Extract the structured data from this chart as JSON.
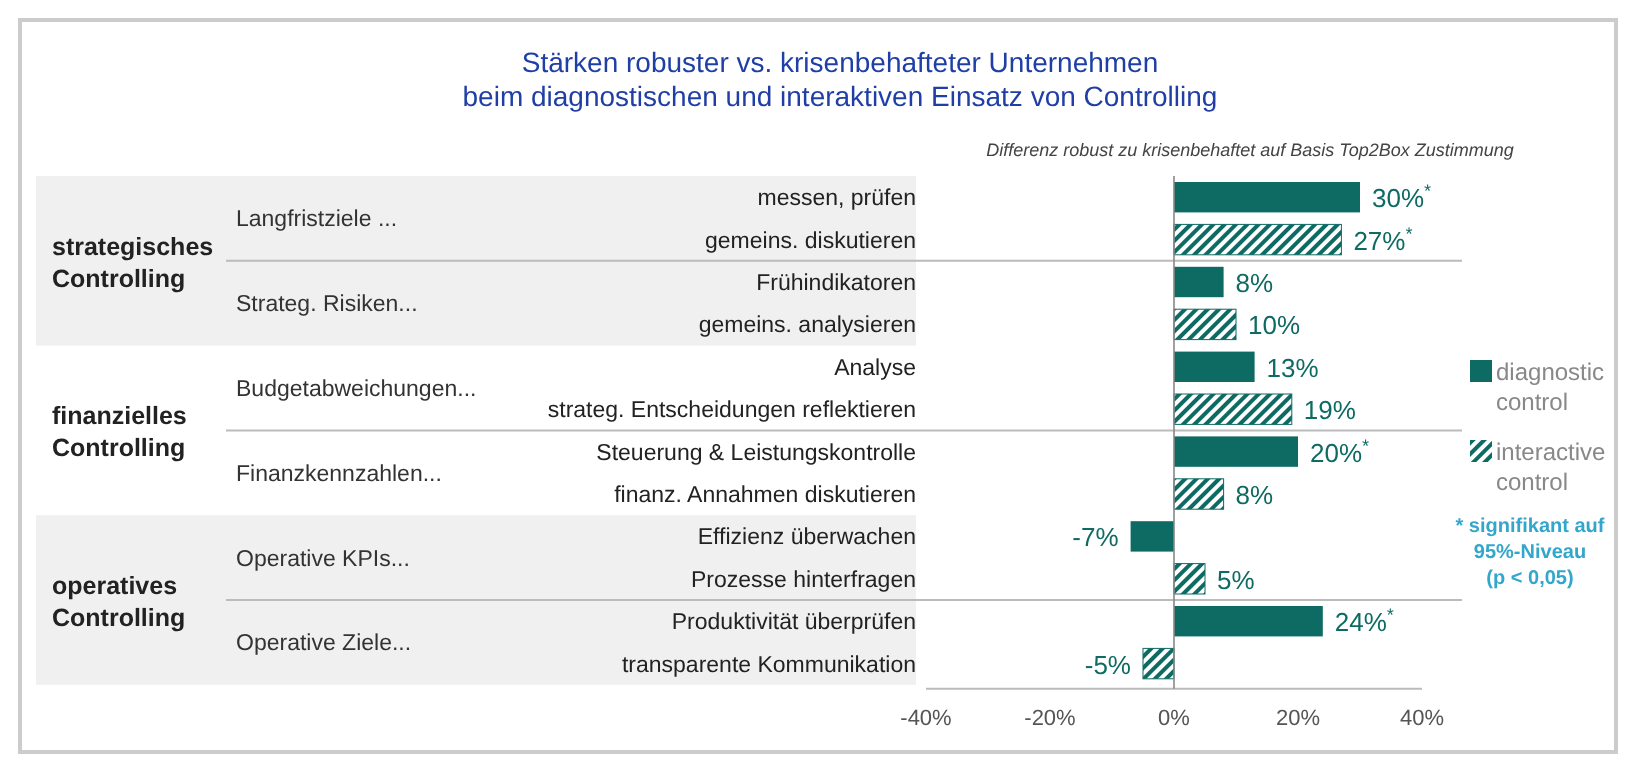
{
  "chart_data": {
    "type": "bar",
    "orientation": "horizontal",
    "title": "Stärken robuster vs. krisenbehafteter Unternehmen\nbeim diagnostischen und interaktiven Einsatz von Controlling",
    "subtitle": "Differenz robust zu krisenbehaftet auf Basis Top2Box Zustimmung",
    "categories": [
      "messen, prüfen",
      "gemeins. diskutieren",
      "Frühindikatoren",
      "gemeins. analysieren",
      "Analyse",
      "strateg. Entscheidungen reflektieren",
      "Steuerung & Leistungskontrolle",
      "finanz. Annahmen diskutieren",
      "Effizienz überwachen",
      "Prozesse hinterfragen",
      "Produktivität überprüfen",
      "transparente Kommunikation"
    ],
    "series": [
      {
        "name": "diagnostic control",
        "color": "#0e6b63",
        "values": [
          30,
          null,
          8,
          null,
          13,
          null,
          20,
          null,
          -7,
          null,
          24,
          null
        ],
        "value_labels": [
          "30%$^{*}$",
          null,
          "8%",
          null,
          "13%",
          null,
          "20%$^{*}$",
          null,
          "-7%",
          null,
          "24%$^{*}$",
          null
        ]
      },
      {
        "name": "interactive control",
        "color": "#0e6b63",
        "values": [
          null,
          27,
          null,
          10,
          null,
          19,
          null,
          8,
          null,
          5,
          null,
          -5
        ],
        "value_labels": [
          null,
          "27%$^{*}$",
          null,
          "10%",
          null,
          "19%",
          null,
          "8%",
          null,
          "5%",
          null,
          "-5%"
        ]
      }
    ],
    "xlim": [
      -40,
      40
    ],
    "xticks": [
      {
        "value": -40,
        "label": "-40%"
      },
      {
        "value": -20,
        "label": "-20%"
      },
      {
        "value": 0,
        "label": "0%"
      },
      {
        "value": 20,
        "label": "20%"
      },
      {
        "value": 40,
        "label": "40%"
      }
    ],
    "legend": "right",
    "annotations": [
      "strategisches Controlling",
      "finanzielles Controlling",
      "operatives Controlling",
      "Langfristziele ...",
      "Strateg. Risiken...",
      "Budgetabweichungen...",
      "Finanzkennzahlen...",
      "Operative KPIs...",
      "Operative Ziele...",
      "* signifikant auf\n95%-Niveau\n(p < 0,05)"
    ]
  }
}
